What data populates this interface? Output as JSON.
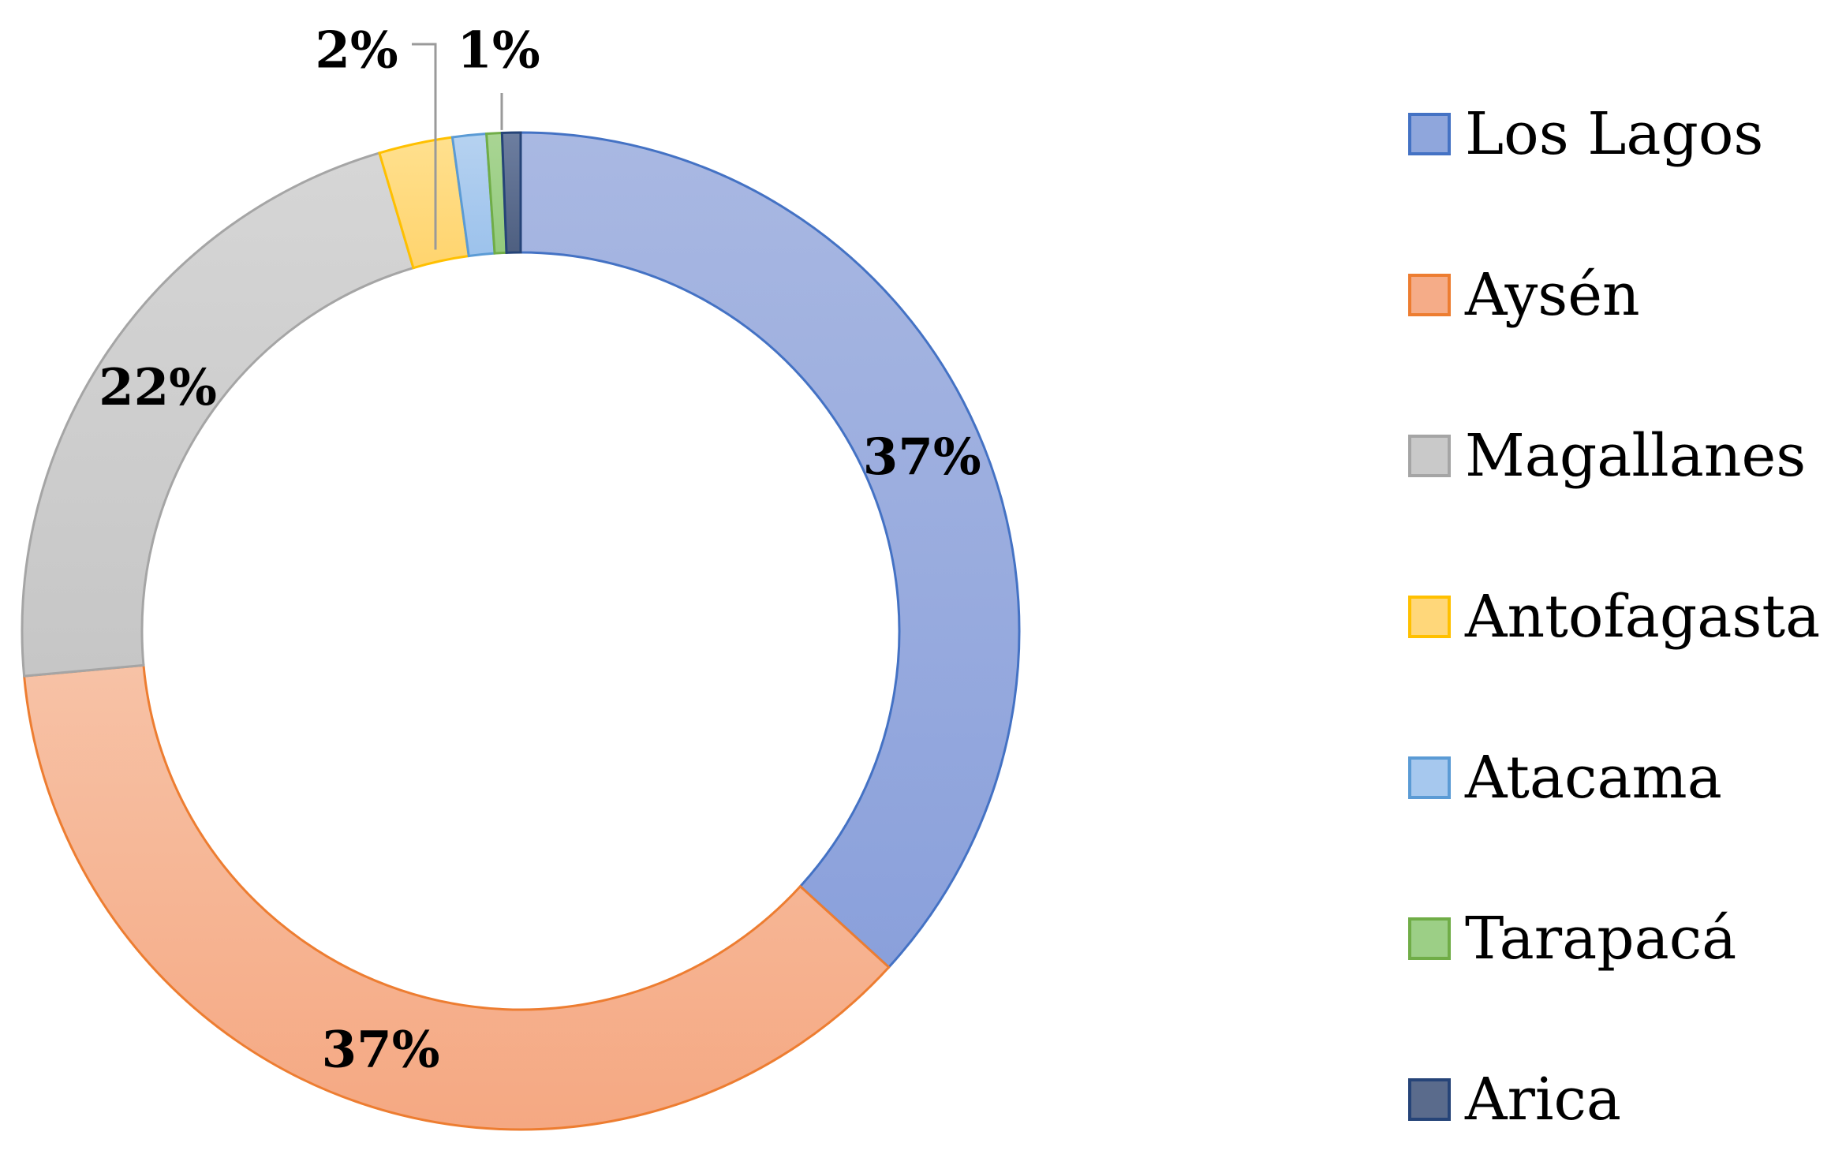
{
  "chart_data": {
    "type": "pie",
    "variant": "donut",
    "title": "",
    "categories": [
      "Los Lagos",
      "Aysén",
      "Magallanes",
      "Antofagasta",
      "Atacama",
      "Tarapacá",
      "Arica"
    ],
    "values": [
      37,
      37,
      22,
      2.4,
      1.1,
      0.5,
      0.6
    ],
    "data_labels": [
      "37%",
      "37%",
      "22%",
      "2%",
      "",
      "1%",
      ""
    ],
    "colors": [
      "#8fa6dc",
      "#f5ac88",
      "#c9c9c9",
      "#ffd77a",
      "#a6c8ee",
      "#9ccf86",
      "#5a6b8c"
    ],
    "edge_colors": [
      "#4472c4",
      "#ed7d31",
      "#a5a5a5",
      "#ffc000",
      "#5b9bd5",
      "#70ad47",
      "#264478"
    ],
    "legend_position": "right"
  }
}
